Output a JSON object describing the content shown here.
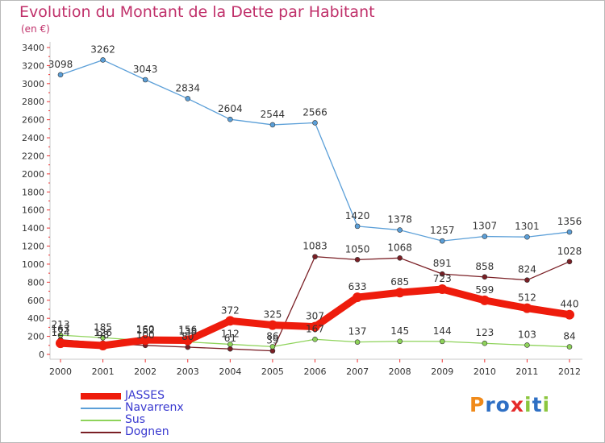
{
  "chart_data": {
    "type": "line",
    "title": "Evolution du Montant de la Dette par Habitant",
    "subtitle": "(en €)",
    "x": [
      "2000",
      "2001",
      "2002",
      "2003",
      "2004",
      "2005",
      "2006",
      "2007",
      "2008",
      "2009",
      "2010",
      "2011",
      "2012"
    ],
    "ylim": [
      0,
      3400
    ],
    "yticks": [
      0,
      200,
      400,
      600,
      800,
      1000,
      1200,
      1400,
      1600,
      1800,
      2000,
      2200,
      2400,
      2600,
      2800,
      3000,
      3200,
      3400
    ],
    "grid": false,
    "legend_position": "bottom-left",
    "series": [
      {
        "name": "JASSES",
        "color": "#ee1c0c",
        "values": [
          124,
          98,
          160,
          156,
          372,
          325,
          307,
          633,
          685,
          723,
          599,
          512,
          440
        ],
        "labels": [
          "124",
          "98",
          "160",
          "156",
          "372",
          "325",
          "307",
          "633",
          "685",
          "723",
          "599",
          "512",
          "440"
        ]
      },
      {
        "name": "Navarrenx",
        "color": "#5b9fd8",
        "values": [
          3098,
          3262,
          3043,
          2834,
          2604,
          2544,
          2566,
          1420,
          1378,
          1257,
          1307,
          1301,
          1356
        ],
        "labels": [
          "3098",
          "3262",
          "3043",
          "2834",
          "2604",
          "2544",
          "2566",
          "1420",
          "1378",
          "1257",
          "1307",
          "1301",
          "1356"
        ]
      },
      {
        "name": "Sus",
        "color": "#8ed35a",
        "values": [
          213,
          185,
          152,
          138,
          112,
          86,
          167,
          137,
          145,
          144,
          123,
          103,
          84
        ],
        "labels": [
          "213",
          "185",
          "152",
          "138",
          "112",
          "86",
          "167",
          "137",
          "145",
          "144",
          "123",
          "103",
          "84"
        ]
      },
      {
        "name": "Dognen",
        "color": "#7a1f25",
        "values": [
          163,
          126,
          100,
          80,
          61,
          39,
          1083,
          1050,
          1068,
          891,
          858,
          824,
          1028
        ],
        "labels": [
          "163",
          "126",
          "100",
          "80",
          "61",
          "39",
          "1083",
          "1050",
          "1068",
          "891",
          "858",
          "824",
          "1028"
        ]
      }
    ]
  },
  "logo": {
    "letters": [
      "P",
      "r",
      "o",
      "x",
      "i",
      "t",
      "i"
    ],
    "colors": [
      "#f08a1a",
      "#2e6fc4",
      "#2e6fc4",
      "#e52a2a",
      "#8cc63f",
      "#2e6fc4",
      "#8cc63f"
    ]
  }
}
